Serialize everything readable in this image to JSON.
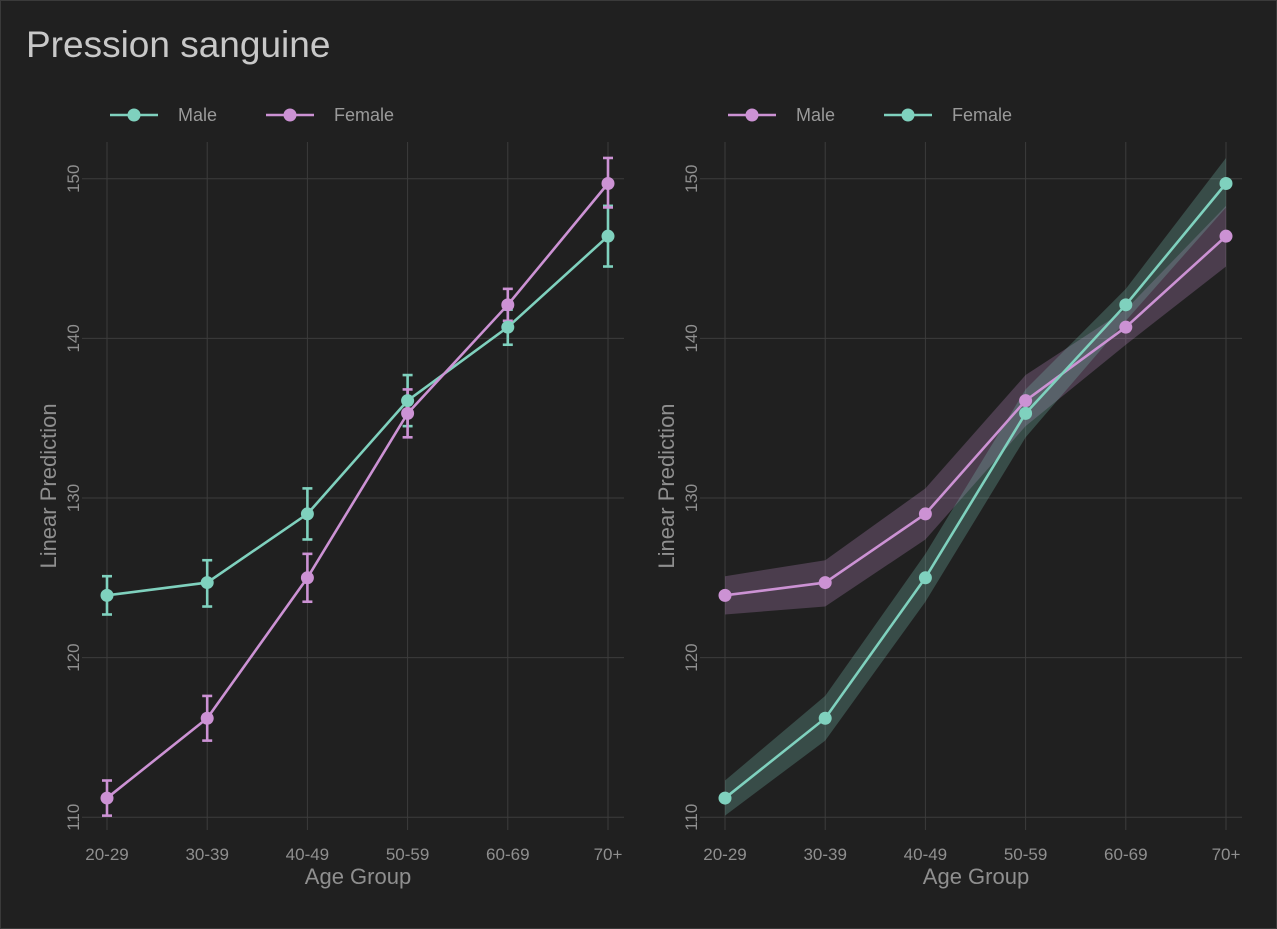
{
  "title": "Pression sanguine",
  "colors": {
    "teal": "#7fd1be",
    "pink": "#cc92d4"
  },
  "chart_data": [
    {
      "type": "line",
      "style": "error-bars",
      "xlabel": "Age Group",
      "ylabel": "Linear Prediction",
      "categories": [
        "20-29",
        "30-39",
        "40-49",
        "50-59",
        "60-69",
        "70+"
      ],
      "yticks": [
        110,
        120,
        130,
        140,
        150
      ],
      "ylim": [
        109.2,
        152.3
      ],
      "grid": true,
      "legend_position": "top-left",
      "series": [
        {
          "name": "Male",
          "color": "#7fd1be",
          "values": [
            123.9,
            124.7,
            129.0,
            136.1,
            140.7,
            146.4
          ],
          "lower": [
            122.7,
            123.2,
            127.4,
            134.5,
            139.6,
            144.5
          ],
          "upper": [
            125.1,
            126.1,
            130.6,
            137.7,
            141.8,
            148.3
          ]
        },
        {
          "name": "Female",
          "color": "#cc92d4",
          "values": [
            111.2,
            116.2,
            125.0,
            135.3,
            142.1,
            149.7
          ],
          "lower": [
            110.1,
            114.8,
            123.5,
            133.8,
            141.1,
            148.2
          ],
          "upper": [
            112.3,
            117.6,
            126.5,
            136.8,
            143.1,
            151.3
          ]
        }
      ]
    },
    {
      "type": "line",
      "style": "ribbons",
      "xlabel": "Age Group",
      "ylabel": "Linear Prediction",
      "categories": [
        "20-29",
        "30-39",
        "40-49",
        "50-59",
        "60-69",
        "70+"
      ],
      "yticks": [
        110,
        120,
        130,
        140,
        150
      ],
      "ylim": [
        109.2,
        152.3
      ],
      "grid": true,
      "legend_position": "top-left",
      "series": [
        {
          "name": "Male",
          "color": "#cc92d4",
          "values": [
            123.9,
            124.7,
            129.0,
            136.1,
            140.7,
            146.4
          ],
          "lower": [
            122.7,
            123.2,
            127.4,
            134.5,
            139.6,
            144.5
          ],
          "upper": [
            125.1,
            126.1,
            130.6,
            137.7,
            141.8,
            148.3
          ]
        },
        {
          "name": "Female",
          "color": "#7fd1be",
          "values": [
            111.2,
            116.2,
            125.0,
            135.3,
            142.1,
            149.7
          ],
          "lower": [
            110.1,
            114.8,
            123.5,
            133.8,
            141.1,
            148.2
          ],
          "upper": [
            112.3,
            117.6,
            126.5,
            136.8,
            143.1,
            151.3
          ]
        }
      ]
    }
  ]
}
